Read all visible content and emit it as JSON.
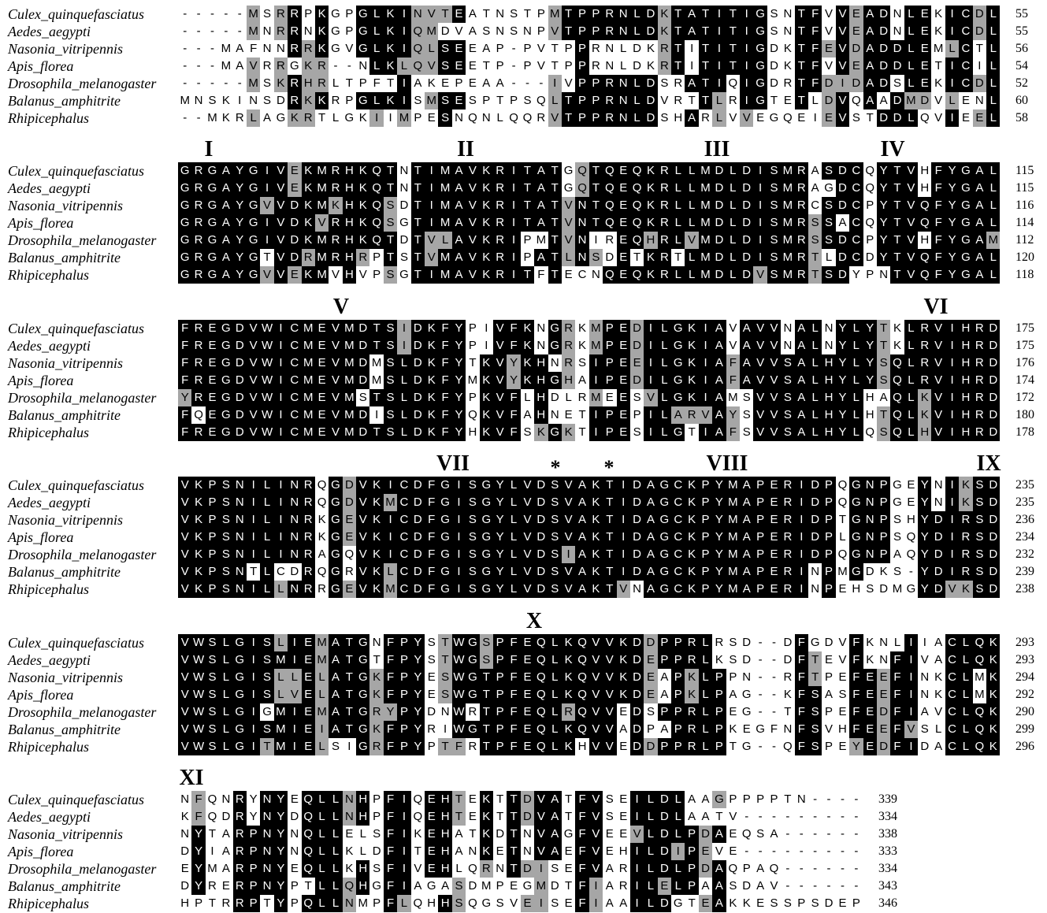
{
  "species": [
    "Culex_quinquefasciatus",
    "Aedes_aegypti",
    "Nasonia_vitripennis",
    "Apis_florea",
    "Drosophila_melanogaster",
    "Balanus_amphitrite",
    "Rhipicephalus"
  ],
  "colors": {
    "identical": "#000000",
    "similar": "#a6a6a6",
    "other": "#ffffff"
  },
  "blocks": [
    {
      "labels": [],
      "rows": [
        {
          "seq": "-----MSRRPKGPGLKINVTEATNSTPMTPPRNLDKTATITIGSNTFVVEADNLEKICDL",
          "end": "55"
        },
        {
          "seq": "-----MNRRNKGPGLKIQMDVASNSNPVTPPRNLDKTATITIGSNTFVVEADNLEKICDL",
          "end": "55"
        },
        {
          "seq": "---MAFNNRRKGVGLKIQLSEEAP-PVTPPRNLDKRTITITIGDKTFEVDADDLEMLCTL",
          "end": "56"
        },
        {
          "seq": "---MAVRRGKR--NLKLQVSEETP-PVTPPRNLDKRTITITIGDKTFVVEADDLETICIL",
          "end": "54"
        },
        {
          "seq": "-----MSKRHRLTPFTIAKEPEAA---IVPPRNLDSRATIQIGDRTFDIDADSLEKICDL",
          "end": "52"
        },
        {
          "seq": "MNSKINSDRKKRPGLKISMSESPTPSQLTPPRNLDVRTTLRIGTETLDVQAADMDVLENL",
          "end": "60"
        },
        {
          "seq": "--MKRLAGKRTLGKIIMPESNQNLQQRVTPPRNLDSHARLVVEGQEIEVSTDDLQVIEEL",
          "end": "58"
        }
      ]
    },
    {
      "labels": [
        "I",
        "II",
        "III",
        "IV"
      ],
      "rows": [
        {
          "seq": "GRGAYGIVEKMRHKQTNTIMAVKRITATGQTQEQKRLLMDLDISMRASDCQYTVHFYGAL",
          "end": "115"
        },
        {
          "seq": "GRGAYGIVEKMRHKQTNTIMAVKRITATGQTQEQKRLLMDLDISMRAGDCQYTVHFYGAL",
          "end": "115"
        },
        {
          "seq": "GRGAYGVVDKMKHKQSDTIMAVKRITATVNTQEQKRLLMDLDISMRCSDCPYTVQFYGAL",
          "end": "116"
        },
        {
          "seq": "GRGAYGIVDKVRHKQSGTIMAVKRITATVNTQEQKRLLMDLDISMRSSACQYTVQFYGAL",
          "end": "114"
        },
        {
          "seq": "GRGAYGIVDKMRHKQTDTVLAVKRIPMTVNIREQHRLVMDLDISMRSSDCPYTVHFYGAM",
          "end": "112"
        },
        {
          "seq": "GRGAYGTVDRMRHRPTSTVMAVKRIPATLNSDETKRTLMDLDISMRTLDCDYTVQFYGAL",
          "end": "120"
        },
        {
          "seq": "GRGAYGVVEKMVHVPSGTIMAVKRITFTECNQEQKRLLMDLDVSMRTSDYPNTVQFYGAL",
          "end": "118"
        }
      ]
    },
    {
      "labels": [
        "V",
        "VI"
      ],
      "rows": [
        {
          "seq": "FREGDVWICMEVMDTSIDKFYPIVFKNGRKMPEDILGKIAVAVVNALNYLYTKLRVIHRD",
          "end": "175"
        },
        {
          "seq": "FREGDVWICMEVMDTSIDKFYPIVFKNGRKMPEDILGKIAVAVVNALNYLYTKLRVIHRD",
          "end": "175"
        },
        {
          "seq": "FREGDVWICMEVMDMSLDKFYTKVYKHNRSIPEEILGKIAFAVVSALHYLYSQLRVIHRD",
          "end": "176"
        },
        {
          "seq": "FREGDVWICMEVMDMSLDKFYMKVYKHGHAIPEDILGKIAFAVVSALHYLYSQLRVIHRD",
          "end": "174"
        },
        {
          "seq": "YREGDVWICMEVMSTSLDKFYPKVFLHDLRMEESVLGKIAMSVVSALHYLHAQLKVIHRD",
          "end": "172"
        },
        {
          "seq": "FQEGDVWICMEVMDISLDKFYQKVFAHNETIPEPILARVAYSVVSALHYLHTQLKVIHRD",
          "end": "180"
        },
        {
          "seq": "FREGDVWICMEVMDTSLDKFYHKVFSKGKTIPESILGTIAFSVVSALHYLQSQLHVIHRD",
          "end": "178"
        }
      ]
    },
    {
      "labels": [
        "VII",
        "*",
        "*",
        "VIII",
        "IX"
      ],
      "rows": [
        {
          "seq": "VKPSNILINRQGDVKICDFGISGYLVDSVAKTIDAGCKPYMAPERIDPQGNPGEYNIKSD",
          "end": "235"
        },
        {
          "seq": "VKPSNILINRQGDVKMCDFGISGYLVDSVAKTIDAGCKPYMAPERIDPQGNPGEYNIKSD",
          "end": "235"
        },
        {
          "seq": "VKPSNILINRKGEVKICDFGISGYLVDSVAKTIDAGCKPYMAPERIDPTGNPSHYDIRSD",
          "end": "236"
        },
        {
          "seq": "VKPSNILINRKGEVKICDFGISGYLVDSVAKTIDAGCKPYMAPERIDPLGNPSQYDIRSD",
          "end": "234"
        },
        {
          "seq": "VKPSNILINRAGQVKICDFGISGYLVDSIAKTIDAGCKPYMAPERIDPQGNPAQYDIRSD",
          "end": "232"
        },
        {
          "seq": "VKPSNTLCDRQGRVKLCDFGISGYLVDSVAKTIDAGCKPYMAPERINPMGDKS-YDIRSD",
          "end": "239"
        },
        {
          "seq": "VKPSNILLNRRGEVKMCDFGISGYLVDSVAKTVNAGCKPYMAPERINPEHSDMGYDVKSD",
          "end": "238"
        }
      ]
    },
    {
      "labels": [
        "X"
      ],
      "rows": [
        {
          "seq": "VWSLGISLIEMATGNFPYSTWGSPFEQLKQVVKDDPPRLRSD--DFGDVFKNLIIACLQK",
          "end": "293"
        },
        {
          "seq": "VWSLGISMIEMATGTFPYSTWGSPFEQLKQVVKDEPPRLKSD--DFTEVFKNFIVACLQK",
          "end": "293"
        },
        {
          "seq": "VWSLGISLLELATGKFPYESWGTPFEQLKQVVKDEAPKLPPN--RFTPEFEEFINKCLMK",
          "end": "294"
        },
        {
          "seq": "VWSLGISLVELATGKFPYESWGTPFEQLKQVVKDEAPKLPAG--KFSASFEEFINKCLMK",
          "end": "292"
        },
        {
          "seq": "VWSLGIGMIEMATGRYPYDNWRTPFEQLRQVVEDSPPRLPEG--TFSPEFEDFIAVCLQK",
          "end": "290"
        },
        {
          "seq": "VWSLGISMIEIATGKFPYRIWGTPFEQLKQVVADPAPRLPKEGFNFSVHFEEFVSLCLQK",
          "end": "299"
        },
        {
          "seq": "VWSLGITMIELSIGRFPYPTFRTPFEQLKHVVEDDPPRLPTG--QFSPEYEDFIDACLQK",
          "end": "296"
        }
      ]
    },
    {
      "labels": [
        "XI"
      ],
      "rows": [
        {
          "seq": "NFQNRYNYEQLLNHPFIQEHTEKTTDVATFVSEILDLAAGPPPPTN----",
          "end": "339"
        },
        {
          "seq": "KFQDRYNYDQLLNHPFIQEHTEKTTDVATFVSEILDLAATV---------",
          "end": "334"
        },
        {
          "seq": "NYTARPNYNQLLELSFIKEHATKDTNVAGFVEEVLDLPDAEQSA------",
          "end": "338"
        },
        {
          "seq": "DYIARPNYNQLLKLDFITEHANKETNVAEFVEHILDIPEVE---------",
          "end": "333"
        },
        {
          "seq": "EYMARPNYEQLLKHSFIVEHLQRNTDISEFVARILDLPDAQPAQ------",
          "end": "334"
        },
        {
          "seq": "DYRERPNYPTLLQHGFIAGASDMPEGMDTFIARILELPAASDAV------",
          "end": "343"
        },
        {
          "seq": "HPTRRPTYPQLLNMPFLQHHSQGSVEISEFIAAILDGTEAKKESSPSDEP",
          "end": "346"
        }
      ]
    }
  ]
}
